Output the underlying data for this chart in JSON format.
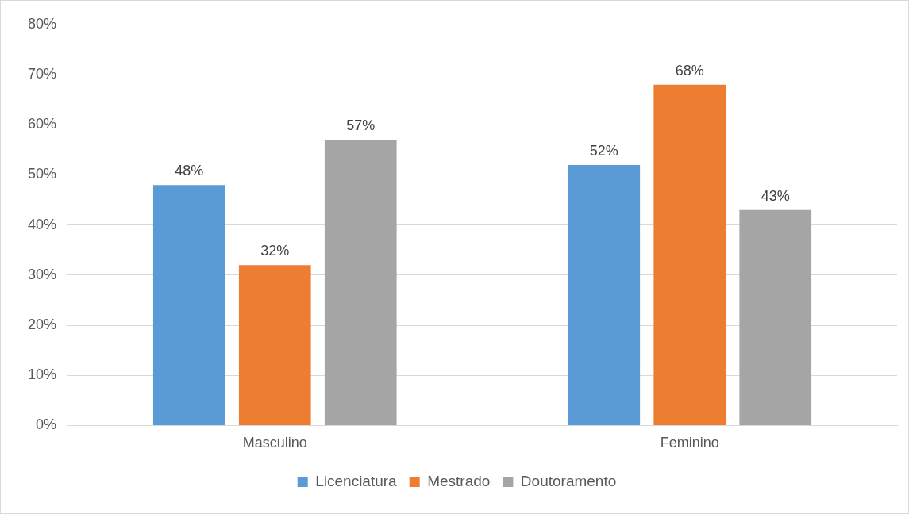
{
  "chart_data": {
    "type": "bar",
    "categories": [
      "Masculino",
      "Feminino"
    ],
    "series": [
      {
        "name": "Licenciatura",
        "color": "#5b9bd5",
        "values": [
          48,
          52
        ],
        "value_labels": [
          "48%",
          "52%"
        ]
      },
      {
        "name": "Mestrado",
        "color": "#ed7d31",
        "values": [
          32,
          68
        ],
        "value_labels": [
          "32%",
          "68%"
        ]
      },
      {
        "name": "Doutoramento",
        "color": "#a5a5a5",
        "values": [
          57,
          43
        ],
        "value_labels": [
          "57%",
          "43%"
        ]
      }
    ],
    "ylim": [
      0,
      80
    ],
    "yticks": [
      {
        "value": 0,
        "label": "0%"
      },
      {
        "value": 10,
        "label": "10%"
      },
      {
        "value": 20,
        "label": "20%"
      },
      {
        "value": 30,
        "label": "30%"
      },
      {
        "value": 40,
        "label": "40%"
      },
      {
        "value": 50,
        "label": "50%"
      },
      {
        "value": 60,
        "label": "60%"
      },
      {
        "value": 70,
        "label": "70%"
      },
      {
        "value": 80,
        "label": "80%"
      }
    ],
    "grid": "y",
    "legend": "bottom"
  }
}
